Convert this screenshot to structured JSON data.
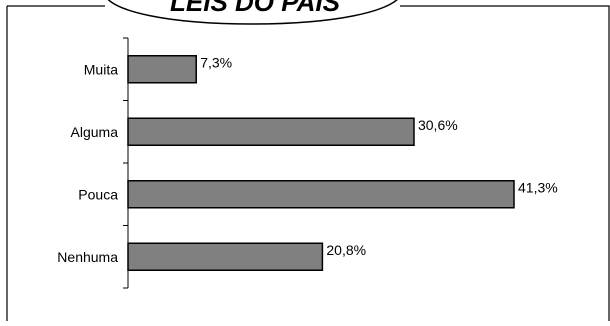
{
  "chart_data": {
    "type": "bar",
    "orientation": "horizontal",
    "title": "LEIS DO PAÍS",
    "categories": [
      "Muita",
      "Alguma",
      "Pouca",
      "Nenhuma"
    ],
    "values": [
      7.3,
      30.6,
      41.3,
      20.8
    ],
    "data_labels": [
      "7,3%",
      "30,6%",
      "41,3%",
      "20,8%"
    ],
    "xlim": [
      0,
      41.3
    ],
    "grid": false,
    "legend": "none",
    "colors": {
      "bar_fill": "#808080",
      "bar_stroke": "#000000",
      "axis": "#000000",
      "text": "#000000",
      "background": "#ffffff"
    }
  }
}
